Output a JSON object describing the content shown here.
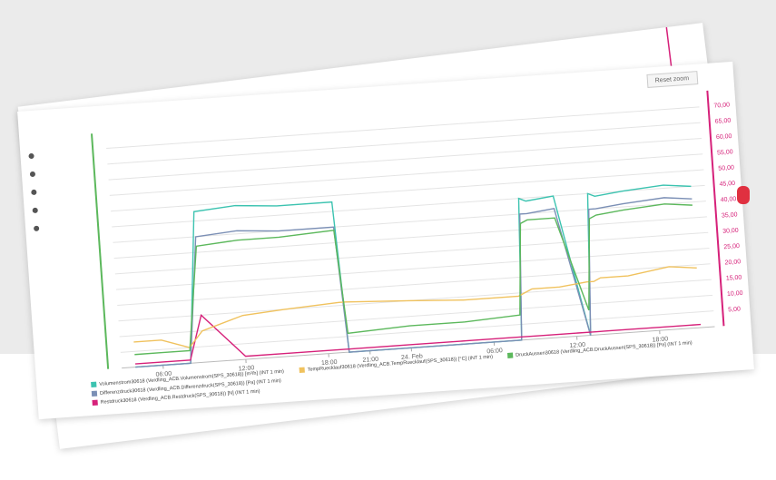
{
  "ui": {
    "reset_zoom": "Reset zoom"
  },
  "chart_data": {
    "type": "line",
    "x": [
      4,
      6,
      8,
      9,
      12,
      15,
      19,
      19.5,
      24,
      28,
      32,
      32.5,
      33,
      35,
      37,
      37.5,
      38,
      40,
      43,
      45
    ],
    "xlim": [
      3,
      46
    ],
    "xticks": [
      {
        "value": 6,
        "label": "06:00"
      },
      {
        "value": 12,
        "label": "12:00"
      },
      {
        "value": 18,
        "label": "18:00"
      },
      {
        "value": 21,
        "label": "21:00"
      },
      {
        "value": 24,
        "label": "24. Feb"
      },
      {
        "value": 30,
        "label": "06:00"
      },
      {
        "value": 36,
        "label": "12:00"
      },
      {
        "value": 42,
        "label": "18:00"
      }
    ],
    "ylim": [
      0,
      75
    ],
    "yticks": [
      {
        "value": 5,
        "label": "5,00"
      },
      {
        "value": 10,
        "label": "10,00"
      },
      {
        "value": 15,
        "label": "15,00"
      },
      {
        "value": 20,
        "label": "20,00"
      },
      {
        "value": 25,
        "label": "25,00"
      },
      {
        "value": 30,
        "label": "30,00"
      },
      {
        "value": 35,
        "label": "35,00"
      },
      {
        "value": 40,
        "label": "40,00"
      },
      {
        "value": 45,
        "label": "45,00"
      },
      {
        "value": 50,
        "label": "50,00"
      },
      {
        "value": 55,
        "label": "55,00"
      },
      {
        "value": 60,
        "label": "60,00"
      },
      {
        "value": 65,
        "label": "65,00"
      },
      {
        "value": 70,
        "label": "70,00"
      }
    ],
    "grid": true,
    "series": [
      {
        "name": "Volumenstrom30618 (Verdling_ACB.Volumenstrom(SPS_30618)) [m³/h] (INT 1 min)",
        "color": "#3cc3b0",
        "values": [
          0,
          0,
          0,
          48,
          49,
          48,
          48,
          0,
          0,
          0,
          0,
          45,
          44,
          45,
          0,
          45,
          44,
          45,
          46,
          45
        ]
      },
      {
        "name": "Differenzdruck30618 (Verdling_ACB.Differenzdruck(SPS_30618)) [Pa] (INT 1 min)",
        "color": "#7b8fb5",
        "values": [
          0,
          0,
          0,
          40,
          41,
          40,
          40,
          0,
          0,
          0,
          0,
          40,
          40,
          41,
          0,
          40,
          40,
          41,
          42,
          41
        ]
      },
      {
        "name": "Restdruck30618 (Verdling_ACB.Restdruck(SPS_30618)) [N] (INT 1 min)",
        "color": "#d6217a",
        "values": [
          1,
          1,
          1,
          15,
          1,
          1,
          1,
          1,
          1,
          1,
          1,
          1,
          1,
          1,
          1,
          1,
          1,
          1,
          1,
          1
        ]
      },
      {
        "name": "TempRuecklauf30618 (Verdling_ACB.TempRuecklauf(SPS_30618)) [°C] (INT 1 min)",
        "color": "#f0c25e",
        "values": [
          8,
          8,
          5,
          10,
          14,
          15,
          16,
          16,
          15,
          14,
          14,
          15,
          16,
          16,
          17,
          17,
          18,
          18,
          20,
          19
        ]
      },
      {
        "name": "DruckAussen30618 (Verdling_ACB.DruckAussen(SPS_30618)) [Pa] (INT 1 min)",
        "color": "#5cb85c",
        "values": [
          4,
          4,
          4,
          37,
          38,
          38,
          39,
          6,
          7,
          7,
          8,
          37,
          38,
          38,
          8,
          37,
          38,
          39,
          40,
          39
        ]
      }
    ]
  }
}
